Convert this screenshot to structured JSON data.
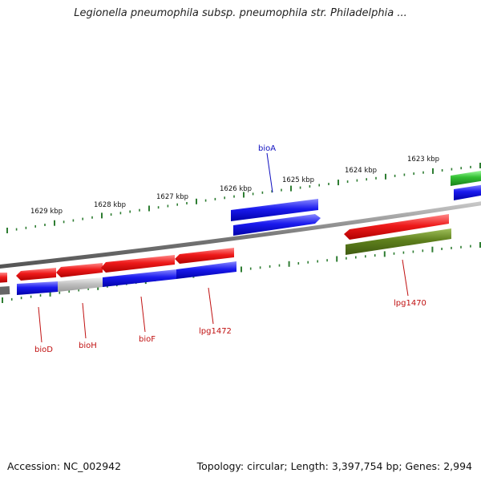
{
  "title": "Legionella pneumophila subsp. pneumophila str. Philadelphia ...",
  "ticks": [
    "1629 kbp",
    "1628 kbp",
    "1627 kbp",
    "1626 kbp",
    "1625 kbp",
    "1624 kbp",
    "1623 kbp"
  ],
  "gene_labels": [
    {
      "name": "bioA",
      "color": "#1010c0"
    },
    {
      "name": "bioD",
      "color": "#c01010"
    },
    {
      "name": "bioH",
      "color": "#c01010"
    },
    {
      "name": "bioF",
      "color": "#c01010"
    },
    {
      "name": "lpg1472",
      "color": "#c01010"
    },
    {
      "name": "lpg1470",
      "color": "#c01010"
    }
  ],
  "colors": {
    "red": "#e01010",
    "blue": "#1010e0",
    "green": "#30b030",
    "olive": "#5a7d1a",
    "gray": "#b8b8b8",
    "backbone": "#7a7a7a",
    "tick": "#2e7d32"
  },
  "footer": {
    "accession": "Accession: NC_002942",
    "topology": "Topology: circular; Length: 3,397,754 bp; Genes: 2,994"
  }
}
